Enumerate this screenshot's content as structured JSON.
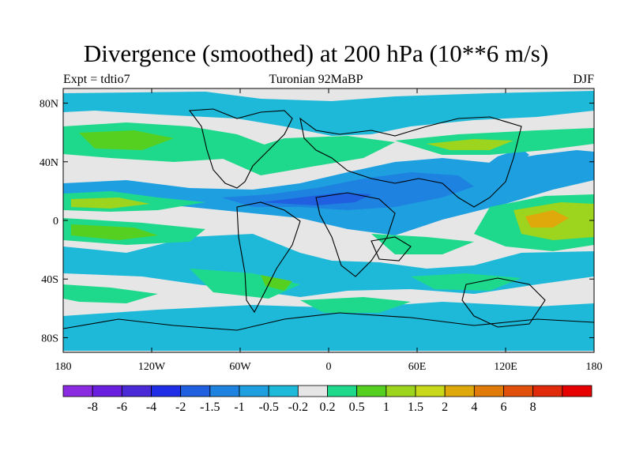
{
  "title": "Divergence (smoothed) at 200 hPa (10**6 m/s)",
  "subtitle_left": "Expt = tdtio7",
  "subtitle_center": "Turonian  92MaBP",
  "subtitle_right": "DJF",
  "map": {
    "lon_range": [
      -180,
      180
    ],
    "lat_range": [
      -90,
      90
    ],
    "lat_ticks": [
      {
        "value": 80,
        "label": "80N"
      },
      {
        "value": 40,
        "label": "40N"
      },
      {
        "value": 0,
        "label": "0"
      },
      {
        "value": -40,
        "label": "40S"
      },
      {
        "value": -80,
        "label": "80S"
      }
    ],
    "lon_ticks": [
      {
        "value": -180,
        "label": "180"
      },
      {
        "value": -120,
        "label": "120W"
      },
      {
        "value": -60,
        "label": "60W"
      },
      {
        "value": 0,
        "label": "0"
      },
      {
        "value": 60,
        "label": "60E"
      },
      {
        "value": 120,
        "label": "120E"
      },
      {
        "value": 180,
        "label": "180"
      }
    ],
    "background_color": "#e6e6e6"
  },
  "colorbar": {
    "colors": [
      "#8a2be2",
      "#6a1fe0",
      "#4a2ad6",
      "#1f2ee6",
      "#1f5fe0",
      "#1e82e0",
      "#1ea0e0",
      "#1eb9d8",
      "#e6e6e6",
      "#1ed98c",
      "#55d020",
      "#9cd41e",
      "#c8d81a",
      "#dfa90c",
      "#e07a08",
      "#e0500a",
      "#e02a0a",
      "#e60000"
    ],
    "labels": [
      "-8",
      "-6",
      "-4",
      "-2",
      "-1.5",
      "-1",
      "-0.5",
      "-0.2",
      "0.2",
      "0.5",
      "1",
      "1.5",
      "2",
      "4",
      "6",
      "8"
    ]
  }
}
